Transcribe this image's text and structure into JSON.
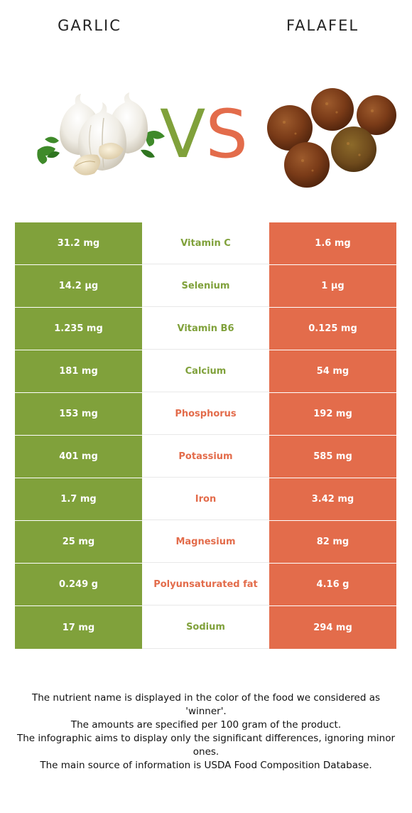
{
  "header": {
    "left_food": "GARLIC",
    "right_food": "FALAFEL",
    "vs_label": "VS"
  },
  "colors": {
    "left_food_color": "#80a13b",
    "right_food_color": "#e36c4b"
  },
  "images": {
    "left": "garlic-bulbs-with-parsley",
    "right": "falafel-balls"
  },
  "rows": [
    {
      "nutrient": "Vitamin C",
      "left": "31.2 mg",
      "right": "1.6 mg",
      "winner": "left"
    },
    {
      "nutrient": "Selenium",
      "left": "14.2 µg",
      "right": "1 µg",
      "winner": "left"
    },
    {
      "nutrient": "Vitamin B6",
      "left": "1.235 mg",
      "right": "0.125 mg",
      "winner": "left"
    },
    {
      "nutrient": "Calcium",
      "left": "181 mg",
      "right": "54 mg",
      "winner": "left"
    },
    {
      "nutrient": "Phosphorus",
      "left": "153 mg",
      "right": "192 mg",
      "winner": "right"
    },
    {
      "nutrient": "Potassium",
      "left": "401 mg",
      "right": "585 mg",
      "winner": "right"
    },
    {
      "nutrient": "Iron",
      "left": "1.7 mg",
      "right": "3.42 mg",
      "winner": "right"
    },
    {
      "nutrient": "Magnesium",
      "left": "25 mg",
      "right": "82 mg",
      "winner": "right"
    },
    {
      "nutrient": "Polyunsaturated fat",
      "left": "0.249 g",
      "right": "4.16 g",
      "winner": "right"
    },
    {
      "nutrient": "Sodium",
      "left": "17 mg",
      "right": "294 mg",
      "winner": "left"
    }
  ],
  "footnotes": [
    "The nutrient name is displayed in the color of the food we considered as 'winner'.",
    "The amounts are specified per 100 gram of the product.",
    "The infographic aims to display only the significant differences, ignoring minor ones.",
    "The main source of information is USDA Food Composition Database."
  ]
}
